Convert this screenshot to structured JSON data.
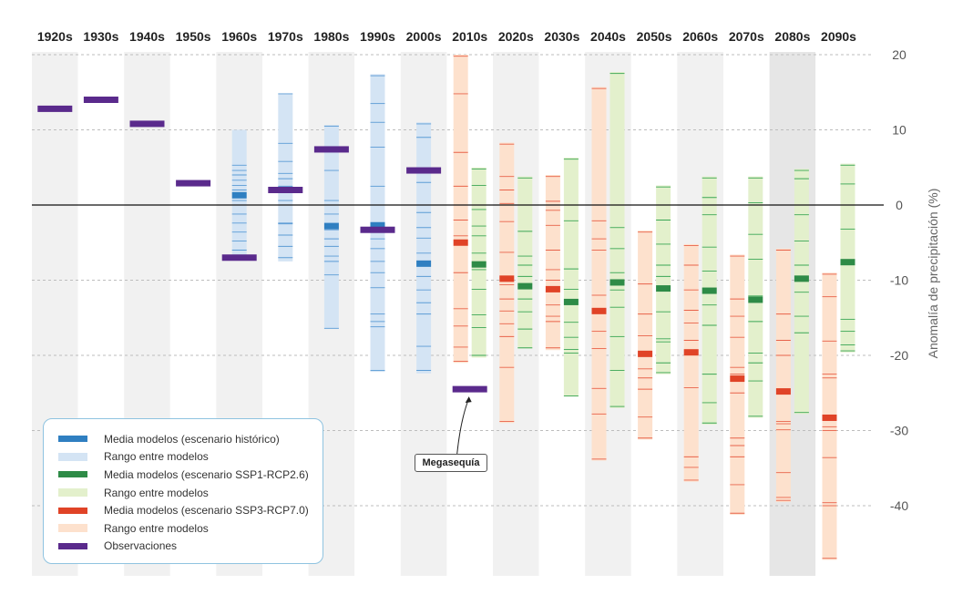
{
  "chart_data": {
    "type": "range-bar",
    "ylabel": "Anomalía de precipitación (%)",
    "ylim": [
      -47,
      20
    ],
    "yticks": [
      20,
      10,
      0,
      -10,
      -20,
      -30,
      -40
    ],
    "grid": true,
    "legend_position": "bottom-left",
    "decades": [
      "1920s",
      "1930s",
      "1940s",
      "1950s",
      "1960s",
      "1970s",
      "1980s",
      "1990s",
      "2000s",
      "2010s",
      "2020s",
      "2030s",
      "2040s",
      "2050s",
      "2060s",
      "2070s",
      "2080s",
      "2090s"
    ],
    "observations": [
      {
        "decade": "1920s",
        "value": 12.8
      },
      {
        "decade": "1930s",
        "value": 14.0
      },
      {
        "decade": "1940s",
        "value": 10.8
      },
      {
        "decade": "1950s",
        "value": 2.9
      },
      {
        "decade": "1960s",
        "value": -7.0
      },
      {
        "decade": "1970s",
        "value": 2.0
      },
      {
        "decade": "1980s",
        "value": 7.4
      },
      {
        "decade": "1990s",
        "value": -3.3
      },
      {
        "decade": "2000s",
        "value": 4.6
      },
      {
        "decade": "2010s",
        "value": -24.5
      }
    ],
    "series": [
      {
        "name": "Histórico",
        "mean_color": "#2f7fc1",
        "range_color": "#d4e4f4",
        "line_color": "#5b9bd5",
        "ranges": [
          {
            "decade": "1960s",
            "min": -7.0,
            "max": 10.0,
            "mean": 1.3,
            "lines": [
              -6.0,
              -4.8,
              -3.6,
              -2.4,
              -1.2,
              0.0,
              0.6,
              2.0,
              2.6,
              3.3,
              4.0,
              4.6,
              5.3
            ]
          },
          {
            "decade": "1970s",
            "min": -7.5,
            "max": 14.8,
            "mean": 2.0,
            "lines": [
              -7.0,
              -5.5,
              -4.0,
              -2.5,
              -2.4,
              0.0,
              0.6,
              2.5,
              3.5,
              4.2,
              5.8,
              8.2,
              14.8
            ]
          },
          {
            "decade": "1980s",
            "min": -16.5,
            "max": 10.6,
            "mean": -2.8,
            "lines": [
              -16.4,
              -9.3,
              -7.5,
              -6.8,
              -5.5,
              -4.5,
              -3.3,
              -1.2,
              0.6,
              4.6,
              7.4,
              10.5
            ]
          },
          {
            "decade": "1990s",
            "min": -22.2,
            "max": 17.4,
            "mean": -2.7,
            "lines": [
              -22.0,
              -16.2,
              -15.5,
              -14.5,
              -11.0,
              -9.0,
              -7.5,
              -5.8,
              -4.5,
              -2.4,
              2.5,
              7.7,
              11.0,
              13.5,
              17.2
            ]
          },
          {
            "decade": "2000s",
            "min": -22.4,
            "max": 11.0,
            "mean": -7.8,
            "lines": [
              -22.0,
              -18.8,
              -14.5,
              -13.0,
              -11.3,
              -9.5,
              -6.4,
              -4.4,
              -3.0,
              -1.0,
              3.0,
              9.0,
              10.8
            ]
          }
        ]
      },
      {
        "name": "SSP1-RCP2.6",
        "mean_color": "#2e8b47",
        "range_color": "#e3f0cc",
        "line_color": "#3aa655",
        "ranges": [
          {
            "decade": "2010s",
            "min": -20.3,
            "max": 5.0,
            "mean": -7.9,
            "lines": [
              -20.0,
              -16.3,
              -14.6,
              -11.2,
              -8.6,
              -6.4,
              -4.1,
              -2.8,
              -0.6,
              2.6,
              4.8
            ]
          },
          {
            "decade": "2020s",
            "min": -19.1,
            "max": 3.8,
            "mean": -10.8,
            "lines": [
              -19.0,
              -16.5,
              -14.2,
              -12.5,
              -9.5,
              -8.0,
              -6.8,
              -3.5,
              3.6
            ]
          },
          {
            "decade": "2030s",
            "min": -25.5,
            "max": 6.3,
            "mean": -12.9,
            "lines": [
              -25.4,
              -19.7,
              -19.2,
              -17.6,
              -15.6,
              -11.2,
              -8.5,
              -2.1,
              6.1
            ]
          },
          {
            "decade": "2040s",
            "min": -27.0,
            "max": 17.7,
            "mean": -10.3,
            "lines": [
              -26.8,
              -22.0,
              -17.5,
              -13.6,
              -11.3,
              -9.0,
              -5.8,
              -3.0,
              17.5
            ]
          },
          {
            "decade": "2050s",
            "min": -22.5,
            "max": 2.6,
            "mean": -11.1,
            "lines": [
              -22.3,
              -21.0,
              -18.2,
              -17.8,
              -14.2,
              -9.5,
              -8.0,
              -5.2,
              -2.0,
              2.4
            ]
          },
          {
            "decade": "2060s",
            "min": -29.2,
            "max": 3.8,
            "mean": -11.4,
            "lines": [
              -29.0,
              -26.3,
              -22.5,
              -16.0,
              -13.3,
              -8.8,
              -5.6,
              -1.3,
              1.0,
              3.6
            ]
          },
          {
            "decade": "2070s",
            "min": -28.3,
            "max": 3.8,
            "mean": -12.6,
            "lines": [
              -28.1,
              -23.4,
              -21.0,
              -19.7,
              -15.5,
              -12.1,
              -7.2,
              -3.9,
              0.3,
              3.6
            ]
          },
          {
            "decade": "2080s",
            "min": -27.8,
            "max": 4.8,
            "mean": -9.8,
            "lines": [
              -27.6,
              -17.0,
              -14.8,
              -11.6,
              -8.0,
              -4.8,
              -1.3,
              3.5,
              4.6
            ]
          },
          {
            "decade": "2090s",
            "min": -19.6,
            "max": 5.5,
            "mean": -7.6,
            "lines": [
              -19.4,
              -18.6,
              -16.8,
              -15.2,
              -3.2,
              2.8,
              5.3
            ]
          }
        ]
      },
      {
        "name": "SSP3-RCP7.0",
        "mean_color": "#e04327",
        "range_color": "#fde1cd",
        "line_color": "#e8624a",
        "ranges": [
          {
            "decade": "2010s",
            "min": -21.0,
            "max": 20.0,
            "mean": -5.0,
            "lines": [
              -20.8,
              -18.9,
              -16.1,
              -13.8,
              -9.0,
              -4.1,
              -2.0,
              0.0,
              2.5,
              7.0,
              14.8,
              19.8
            ]
          },
          {
            "decade": "2020s",
            "min": -29.0,
            "max": 8.3,
            "mean": -9.8,
            "lines": [
              -28.8,
              -21.6,
              -17.5,
              -15.8,
              -14.1,
              -12.5,
              -10.6,
              -6.3,
              -2.2,
              0.2,
              2.0,
              3.8,
              8.1
            ]
          },
          {
            "decade": "2030s",
            "min": -19.3,
            "max": 4.0,
            "mean": -11.2,
            "lines": [
              -19.0,
              -15.5,
              -14.8,
              -13.3,
              -10.0,
              -8.6,
              -6.0,
              -2.7,
              -0.7,
              0.5,
              3.8
            ]
          },
          {
            "decade": "2040s",
            "min": -34.0,
            "max": 15.7,
            "mean": -14.1,
            "lines": [
              -33.8,
              -27.8,
              -24.4,
              -19.1,
              -16.8,
              -12.0,
              -6.0,
              -4.5,
              -2.1,
              15.5
            ]
          },
          {
            "decade": "2050s",
            "min": -31.2,
            "max": -3.4,
            "mean": -19.8,
            "lines": [
              -31.0,
              -28.2,
              -24.5,
              -23.0,
              -21.8,
              -17.4,
              -14.5,
              -10.5,
              -3.6
            ]
          },
          {
            "decade": "2060s",
            "min": -36.8,
            "max": -5.2,
            "mean": -19.6,
            "lines": [
              -36.6,
              -34.9,
              -33.5,
              -24.3,
              -18.0,
              -15.7,
              -14.0,
              -11.3,
              -8.0,
              -5.4
            ]
          },
          {
            "decade": "2070s",
            "min": -41.2,
            "max": -6.6,
            "mean": -23.1,
            "lines": [
              -41.0,
              -37.2,
              -33.5,
              -32.0,
              -31.0,
              -25.0,
              -22.5,
              -21.6,
              -17.6,
              -14.8,
              -12.5,
              -6.8
            ]
          },
          {
            "decade": "2080s",
            "min": -39.5,
            "max": -5.8,
            "mean": -24.8,
            "lines": [
              -39.3,
              -38.9,
              -35.6,
              -29.9,
              -29.1,
              -28.8,
              -20.0,
              -18.0,
              -14.5,
              -6.0
            ]
          },
          {
            "decade": "2090s",
            "min": -47.2,
            "max": -9.0,
            "mean": -28.3,
            "lines": [
              -47.0,
              -40.0,
              -39.6,
              -33.6,
              -30.0,
              -29.5,
              -23.0,
              -22.5,
              -18.1,
              -12.2,
              -9.2
            ]
          }
        ]
      }
    ],
    "annotation": {
      "text": "Megasequía",
      "decade": "2010s",
      "value": -24.5
    }
  },
  "legend": [
    {
      "kind": "mean",
      "color": "#2f7fc1",
      "label": "Media modelos (escenario histórico)"
    },
    {
      "kind": "range",
      "color": "#d4e4f4",
      "label": "Rango entre modelos"
    },
    {
      "kind": "mean",
      "color": "#2e8b47",
      "label": "Media modelos (escenario SSP1-RCP2.6)"
    },
    {
      "kind": "range",
      "color": "#e3f0cc",
      "label": "Rango entre modelos"
    },
    {
      "kind": "mean",
      "color": "#e04327",
      "label": "Media modelos (escenario SSP3-RCP7.0)"
    },
    {
      "kind": "range",
      "color": "#fde1cd",
      "label": "Rango entre modelos"
    },
    {
      "kind": "obs",
      "color": "#5a2a8c",
      "label": "Observaciones"
    }
  ]
}
